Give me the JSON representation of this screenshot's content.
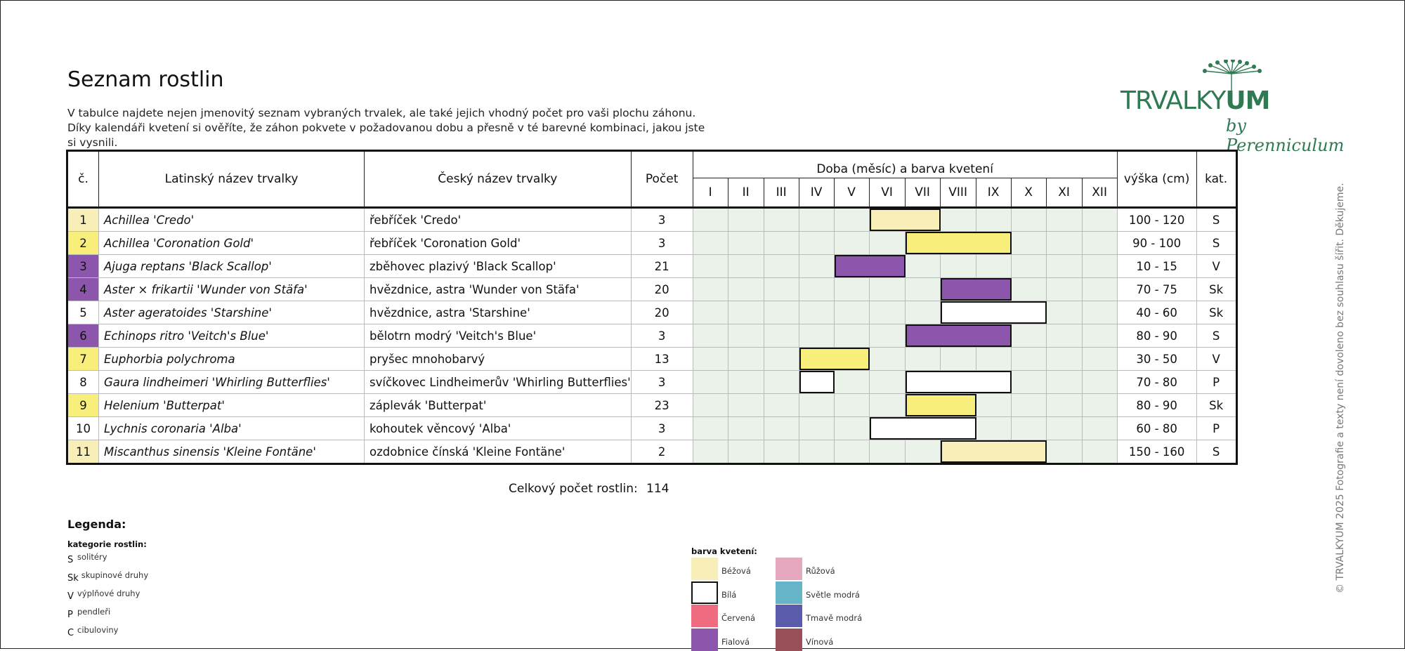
{
  "title": "Seznam rostlin",
  "intro": "V tabulce najdete nejen jmenovitý seznam vybraných trvalek, ale také jejich vhodný počet pro vaši plochu záhonu. Díky kalendáři kvetení si ověříte, že záhon pokvete v požadovanou dobu a přesně v té barevné kombinaci, jakou jste si vysnili.",
  "logo": {
    "main": "TRVALKY",
    "bold": "UM",
    "sub": "by Perenniculum"
  },
  "copyright": "© TRVALKYUM 2025 Fotografie a texty není dovoleno bez souhlasu šířit. Děkujeme.",
  "table": {
    "headers": {
      "num": "č.",
      "latin": "Latinský název trvalky",
      "czech": "Český název trvalky",
      "count": "Počet",
      "bloom": "Doba (měsíc) a barva kvetení",
      "height": "výška (cm)",
      "category": "kat."
    },
    "months": [
      "I",
      "II",
      "III",
      "IV",
      "V",
      "VI",
      "VII",
      "VIII",
      "IX",
      "X",
      "XI",
      "XII"
    ],
    "rows": [
      {
        "num": "1",
        "color": "#f8efb8",
        "latin": "Achillea 'Credo'",
        "czech": "řebříček 'Credo'",
        "count": "3",
        "bloom_start": 6,
        "bloom_end": 7,
        "bloom_color": "#f8efb8",
        "height": "100 - 120",
        "category": "S"
      },
      {
        "num": "2",
        "color": "#f8ee7c",
        "latin": "Achillea 'Coronation Gold'",
        "czech": "řebříček 'Coronation Gold'",
        "count": "3",
        "bloom_start": 7,
        "bloom_end": 9,
        "bloom_color": "#f8ee7c",
        "height": "90 - 100",
        "category": "S"
      },
      {
        "num": "3",
        "color": "#8c56ad",
        "latin": "Ajuga reptans 'Black Scallop'",
        "czech": "zběhovec plazivý 'Black Scallop'",
        "count": "21",
        "bloom_start": 5,
        "bloom_end": 6,
        "bloom_color": "#8c56ad",
        "height": "10 - 15",
        "category": "V"
      },
      {
        "num": "4",
        "color": "#8c56ad",
        "latin": "Aster × frikartii 'Wunder von Stäfa'",
        "czech": "hvězdnice, astra 'Wunder von Stäfa'",
        "count": "20",
        "bloom_start": 8,
        "bloom_end": 9,
        "bloom_color": "#8c56ad",
        "height": "70 - 75",
        "category": "Sk"
      },
      {
        "num": "5",
        "color": "#ffffff",
        "latin": "Aster ageratoides 'Starshine'",
        "czech": "hvězdnice, astra 'Starshine'",
        "count": "20",
        "bloom_start": 8,
        "bloom_end": 10,
        "bloom_color": "#ffffff",
        "height": "40 - 60",
        "category": "Sk"
      },
      {
        "num": "6",
        "color": "#8c56ad",
        "latin": "Echinops ritro 'Veitch's Blue'",
        "czech": "bělotrn modrý 'Veitch's Blue'",
        "count": "3",
        "bloom_start": 7,
        "bloom_end": 9,
        "bloom_color": "#8c56ad",
        "height": "80 - 90",
        "category": "S"
      },
      {
        "num": "7",
        "color": "#f8ee7c",
        "latin": "Euphorbia polychroma",
        "czech": "pryšec mnohobarvý",
        "count": "13",
        "bloom_start": 4,
        "bloom_end": 5,
        "bloom_color": "#f8ee7c",
        "height": "30 - 50",
        "category": "V"
      },
      {
        "num": "8",
        "color": "#ffffff",
        "latin": "Gaura lindheimeri 'Whirling Butterflies'",
        "czech": "svíčkovec Lindheimerův 'Whirling Butterflies'",
        "count": "3",
        "bloom_start": 4,
        "bloom_end": 4,
        "bloom_color": "#ffffff",
        "bloom_start2": 7,
        "bloom_end2": 9,
        "height": "70 - 80",
        "category": "P"
      },
      {
        "num": "9",
        "color": "#f8ee7c",
        "latin": "Helenium 'Butterpat'",
        "czech": "záplevák 'Butterpat'",
        "count": "23",
        "bloom_start": 7,
        "bloom_end": 8,
        "bloom_color": "#f8ee7c",
        "height": "80 - 90",
        "category": "Sk"
      },
      {
        "num": "10",
        "color": "#ffffff",
        "latin": "Lychnis coronaria 'Alba'",
        "czech": "kohoutek věncový 'Alba'",
        "count": "3",
        "bloom_start": 6,
        "bloom_end": 8,
        "bloom_color": "#ffffff",
        "height": "60 - 80",
        "category": "P"
      },
      {
        "num": "11",
        "color": "#f8efb8",
        "latin": "Miscanthus sinensis 'Kleine Fontäne'",
        "czech": "ozdobnice čínská 'Kleine Fontäne'",
        "count": "2",
        "bloom_start": 8,
        "bloom_end": 10,
        "bloom_color": "#f8efb8",
        "height": "150 - 160",
        "category": "S"
      }
    ]
  },
  "total": {
    "label": "Celkový počet rostlin:",
    "value": "114"
  },
  "legend": {
    "title": "Legenda:",
    "categories_title": "kategorie rostlin:",
    "categories": [
      {
        "code": "S",
        "label": "solitéry"
      },
      {
        "code": "Sk",
        "label": "skupinové druhy"
      },
      {
        "code": "V",
        "label": "výplňové druhy"
      },
      {
        "code": "P",
        "label": "pendleři"
      },
      {
        "code": "C",
        "label": "cibuloviny"
      }
    ],
    "colors_title": "barva kvetení:",
    "colors": [
      {
        "label": "Béžová",
        "color": "#f8efb8"
      },
      {
        "label": "Bílá",
        "color": "#ffffff"
      },
      {
        "label": "Červená",
        "color": "#ee6b80"
      },
      {
        "label": "Fialová",
        "color": "#8c56ad"
      },
      {
        "label": "Růžová",
        "color": "#e6a8be"
      },
      {
        "label": "Světle modrá",
        "color": "#66b4c8"
      },
      {
        "label": "Tmavě modrá",
        "color": "#5a5cab"
      },
      {
        "label": "Vínová",
        "color": "#9a5058"
      }
    ]
  }
}
